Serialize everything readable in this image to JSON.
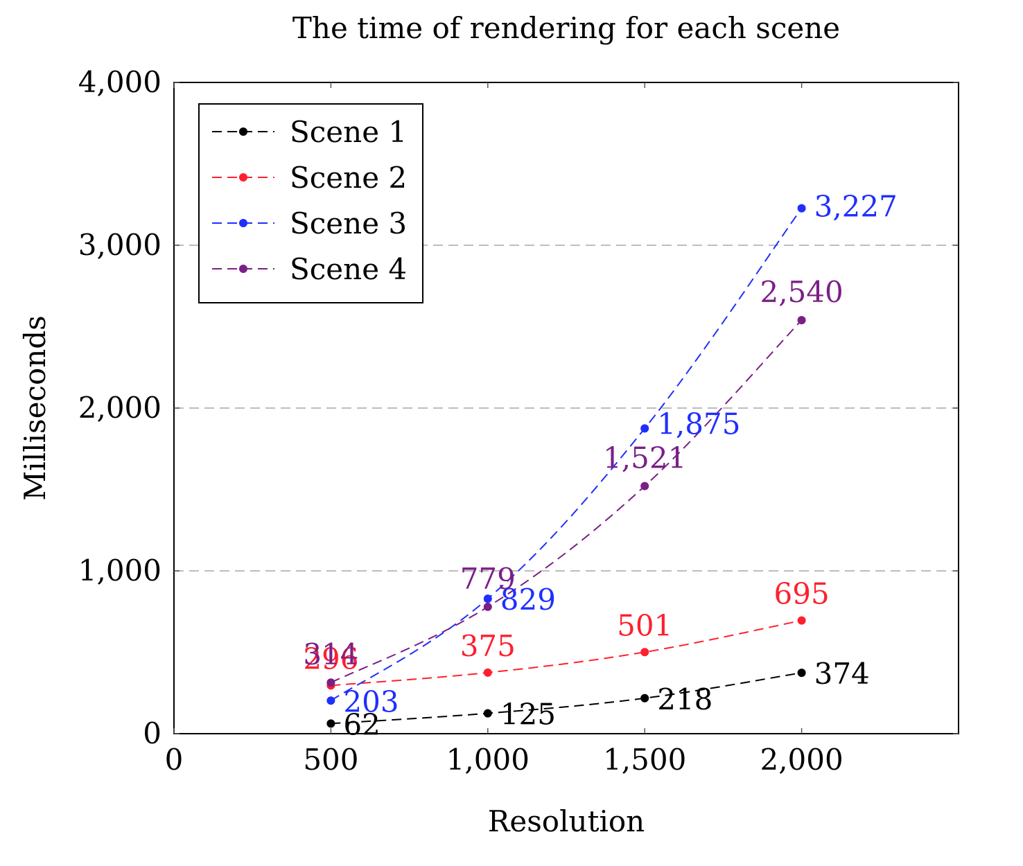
{
  "chart_data": {
    "type": "line",
    "title": "The time of rendering for each scene",
    "xlabel": "Resolution",
    "ylabel": "Milliseconds",
    "xlim": [
      0,
      2500
    ],
    "ylim": [
      0,
      4000
    ],
    "xticks": [
      0,
      500,
      1000,
      1500,
      2000
    ],
    "xtick_labels": [
      "0",
      "500",
      "1,000",
      "1,500",
      "2,000"
    ],
    "yticks": [
      0,
      1000,
      2000,
      3000,
      4000
    ],
    "ytick_labels": [
      "0",
      "1,000",
      "2,000",
      "3,000",
      "4,000"
    ],
    "grid": "horizontal dashed",
    "legend_position": "top-left",
    "line_style": "dashed",
    "x": [
      500,
      1000,
      1500,
      2000
    ],
    "series": [
      {
        "name": "Scene 1",
        "color": "#000000",
        "values": [
          62,
          125,
          218,
          374
        ],
        "labels": [
          "62",
          "125",
          "218",
          "374"
        ]
      },
      {
        "name": "Scene 2",
        "color": "#ff1f2f",
        "values": [
          296,
          375,
          501,
          695
        ],
        "labels": [
          "296",
          "375",
          "501",
          "695"
        ]
      },
      {
        "name": "Scene 3",
        "color": "#1f2fff",
        "values": [
          203,
          829,
          1875,
          3227
        ],
        "labels": [
          "203",
          "829",
          "1,875",
          "3,227"
        ]
      },
      {
        "name": "Scene 4",
        "color": "#7b1f87",
        "values": [
          314,
          779,
          1521,
          2540
        ],
        "labels": [
          "314",
          "779",
          "1,521",
          "2,540"
        ]
      }
    ]
  }
}
